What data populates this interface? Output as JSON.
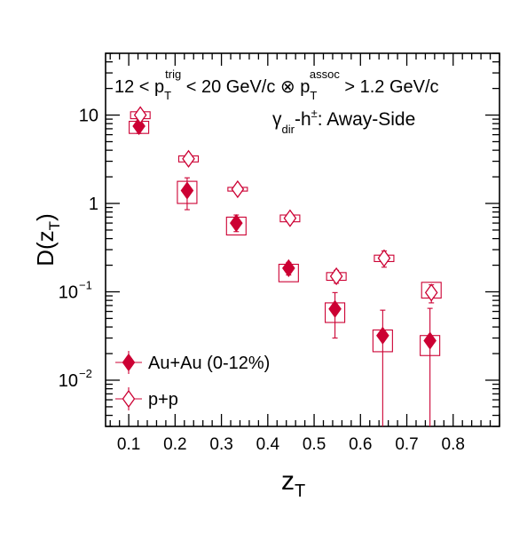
{
  "chart_data": {
    "type": "scatter",
    "header": {
      "cut_prefix": "12 < p",
      "sub_T": "T",
      "sup_trig": "trig",
      "cut_mid": " < 20 GeV/c ⊗ p",
      "sup_assoc": "assoc",
      "cut_suffix": " > 1.2 GeV/c"
    },
    "subheader": {
      "gamma": "γ",
      "sub_dir": "dir",
      "h": "-h",
      "sup_pm": "±",
      "rest": ": Away-Side"
    },
    "ylabel": {
      "main": "D(z",
      "sub": "T",
      "close": ")"
    },
    "xlabel": {
      "main": "z",
      "sub": "T"
    },
    "xlim": [
      0.05,
      0.9
    ],
    "ylim": [
      0.003,
      50
    ],
    "yscale": "log",
    "xticks": [
      "0.1",
      "0.2",
      "0.3",
      "0.4",
      "0.5",
      "0.6",
      "0.7",
      "0.8"
    ],
    "yticks": [
      {
        "value": 10,
        "base": "10",
        "exp": ""
      },
      {
        "value": 1,
        "base": "1",
        "exp": ""
      },
      {
        "value": 0.1,
        "base": "10",
        "exp": "−1"
      },
      {
        "value": 0.01,
        "base": "10",
        "exp": "−2"
      }
    ],
    "color": "#cc0033",
    "legend": {
      "position": "bottom-left"
    },
    "series": [
      {
        "name": "Au+Au (0-12%)",
        "marker": "filled-diamond",
        "x": [
          0.122,
          0.226,
          0.332,
          0.445,
          0.545,
          0.648,
          0.75
        ],
        "y": [
          7.5,
          1.4,
          0.6,
          0.185,
          0.064,
          0.032,
          0.028
        ],
        "stat_low": [
          6.2,
          0.85,
          0.48,
          0.155,
          0.03,
          0.003,
          0.003
        ],
        "stat_high": [
          8.8,
          1.95,
          0.74,
          0.215,
          0.098,
          0.062,
          0.065
        ],
        "sys_low": [
          6.2,
          1.0,
          0.44,
          0.13,
          0.045,
          0.021,
          0.019
        ],
        "sys_high": [
          8.5,
          1.78,
          0.7,
          0.205,
          0.075,
          0.037,
          0.032
        ]
      },
      {
        "name": "p+p",
        "marker": "open-diamond",
        "x": [
          0.125,
          0.229,
          0.335,
          0.448,
          0.548,
          0.651,
          0.753
        ],
        "y": [
          10.0,
          3.2,
          1.45,
          0.68,
          0.15,
          0.24,
          0.098
        ],
        "stat_low": [
          9.5,
          3.0,
          1.38,
          0.64,
          0.125,
          0.19,
          0.075
        ],
        "stat_high": [
          10.6,
          3.4,
          1.52,
          0.72,
          0.175,
          0.29,
          0.12
        ],
        "sys_low": [
          9.1,
          2.95,
          1.38,
          0.62,
          0.135,
          0.22,
          0.085
        ],
        "sys_high": [
          10.9,
          3.45,
          1.52,
          0.74,
          0.165,
          0.26,
          0.128
        ]
      }
    ]
  }
}
